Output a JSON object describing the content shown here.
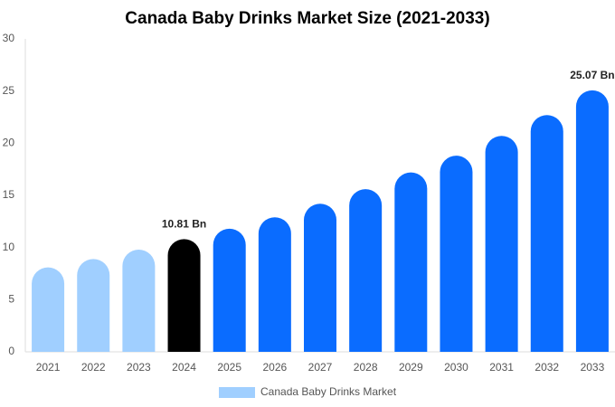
{
  "chart_data": {
    "type": "bar",
    "title": "Canada Baby Drinks Market Size (2021-2033)",
    "categories": [
      "2021",
      "2022",
      "2023",
      "2024",
      "2025",
      "2026",
      "2027",
      "2028",
      "2029",
      "2030",
      "2031",
      "2032",
      "2033"
    ],
    "series": [
      {
        "name": "Canada Baby Drinks Market",
        "color": "#a0cfff",
        "values": [
          8.1,
          8.9,
          9.8,
          10.81,
          11.8,
          12.9,
          14.2,
          15.6,
          17.2,
          18.8,
          20.7,
          22.7,
          25.07
        ],
        "bar_colors": [
          "#a0cfff",
          "#a0cfff",
          "#a0cfff",
          "#000000",
          "#0a6cff",
          "#0a6cff",
          "#0a6cff",
          "#0a6cff",
          "#0a6cff",
          "#0a6cff",
          "#0a6cff",
          "#0a6cff",
          "#0a6cff"
        ],
        "value_labels": [
          null,
          null,
          null,
          "10.81 Bn",
          null,
          null,
          null,
          null,
          null,
          null,
          null,
          null,
          "25.07 Bn"
        ]
      }
    ],
    "ylim": [
      0,
      30
    ],
    "yticks": [
      0,
      5,
      10,
      15,
      20,
      25,
      30
    ],
    "grid": false
  }
}
